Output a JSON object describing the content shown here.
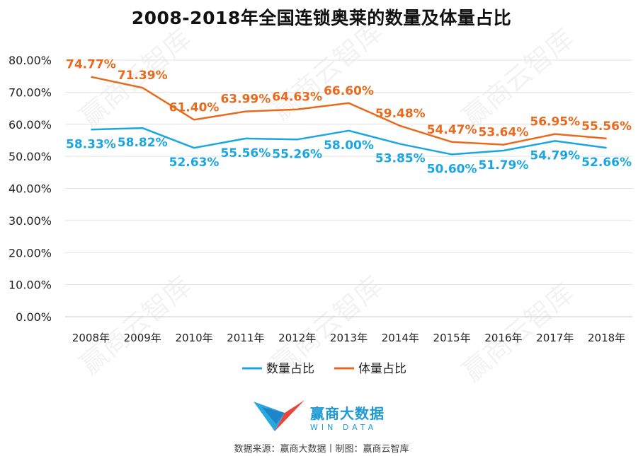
{
  "title": "2008-2018年全国连锁奥莱的数量及体量占比",
  "chart_data": {
    "type": "line",
    "categories": [
      "2008年",
      "2009年",
      "2010年",
      "2011年",
      "2012年",
      "2013年",
      "2014年",
      "2015年",
      "2016年",
      "2017年",
      "2018年"
    ],
    "ylim": [
      0,
      80
    ],
    "yticks": [
      "0.00%",
      "10.00%",
      "20.00%",
      "30.00%",
      "40.00%",
      "50.00%",
      "60.00%",
      "70.00%",
      "80.00%"
    ],
    "grid": true,
    "legend_position": "bottom",
    "series": [
      {
        "name": "数量占比",
        "color": "#1aa6e3",
        "values": [
          58.33,
          58.82,
          52.63,
          55.56,
          55.26,
          58.0,
          53.85,
          50.6,
          51.79,
          54.79,
          52.66
        ],
        "labels": [
          "58.33%",
          "58.82%",
          "52.63%",
          "55.56%",
          "55.26%",
          "58.00%",
          "53.85%",
          "50.60%",
          "51.79%",
          "54.79%",
          "52.66%"
        ]
      },
      {
        "name": "体量占比",
        "color": "#e96a1c",
        "values": [
          74.77,
          71.39,
          61.4,
          63.99,
          64.63,
          66.6,
          59.48,
          54.47,
          53.64,
          56.95,
          55.56
        ],
        "labels": [
          "74.77%",
          "71.39%",
          "61.40%",
          "63.99%",
          "64.63%",
          "66.60%",
          "59.48%",
          "54.47%",
          "53.64%",
          "56.95%",
          "55.56%"
        ]
      }
    ]
  },
  "logo": {
    "cn": "赢商大数据",
    "en": "WIN DATA"
  },
  "watermark": "赢商云智库",
  "footer": "数据来源：赢商大数据丨制图：赢商云智库"
}
